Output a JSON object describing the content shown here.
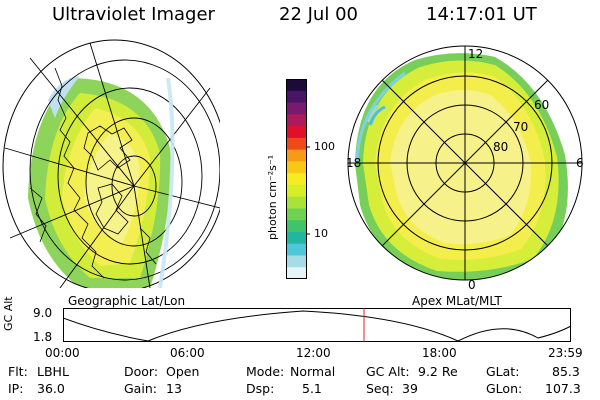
{
  "header": {
    "instrument": "Ultraviolet Imager",
    "date": "22 Jul 00",
    "time": "14:17:01 UT"
  },
  "left_map": {
    "label": "Geographic Lat/Lon"
  },
  "right_map": {
    "label": "Apex MLat/MLT",
    "mlt_labels": {
      "top": "12",
      "right": "6",
      "bottom": "0",
      "left": "18"
    },
    "lat_labels": [
      "60",
      "70",
      "80"
    ]
  },
  "colorbar": {
    "unit_label": "photon cm⁻²s⁻¹",
    "ticks": [
      "100",
      "10"
    ],
    "colors": [
      "#1c0b3a",
      "#4a1466",
      "#7a1a6e",
      "#b0185c",
      "#e0102a",
      "#f04a18",
      "#f79a14",
      "#f8c814",
      "#f5ec22",
      "#d8ef28",
      "#a9e33a",
      "#6fd34f",
      "#3fc46b",
      "#22b5a0",
      "#4ec8d8",
      "#a4dde8",
      "#e7f3f6"
    ]
  },
  "timeline": {
    "axis_label": "GC Alt",
    "y_ticks": [
      "9.0",
      "1.8"
    ],
    "x_ticks": [
      "00:00",
      "06:00",
      "12:00",
      "18:00",
      "23:59"
    ],
    "marker_time": "14:17"
  },
  "status": {
    "flt_label": "Flt:",
    "flt_value": "LBHL",
    "ip_label": "IP:",
    "ip_value": "36.0",
    "door_label": "Door:",
    "door_value": "Open",
    "gain_label": "Gain:",
    "gain_value": "13",
    "mode_label": "Mode:",
    "mode_value": "Normal",
    "dsp_label": "Dsp:",
    "dsp_value": "5.1",
    "gcalt_label": "GC Alt:",
    "gcalt_value": "9.2 Re",
    "seq_label": "Seq:",
    "seq_value": "39",
    "glat_label": "GLat:",
    "glat_value": "85.3",
    "glon_label": "GLon:",
    "glon_value": "107.3"
  }
}
